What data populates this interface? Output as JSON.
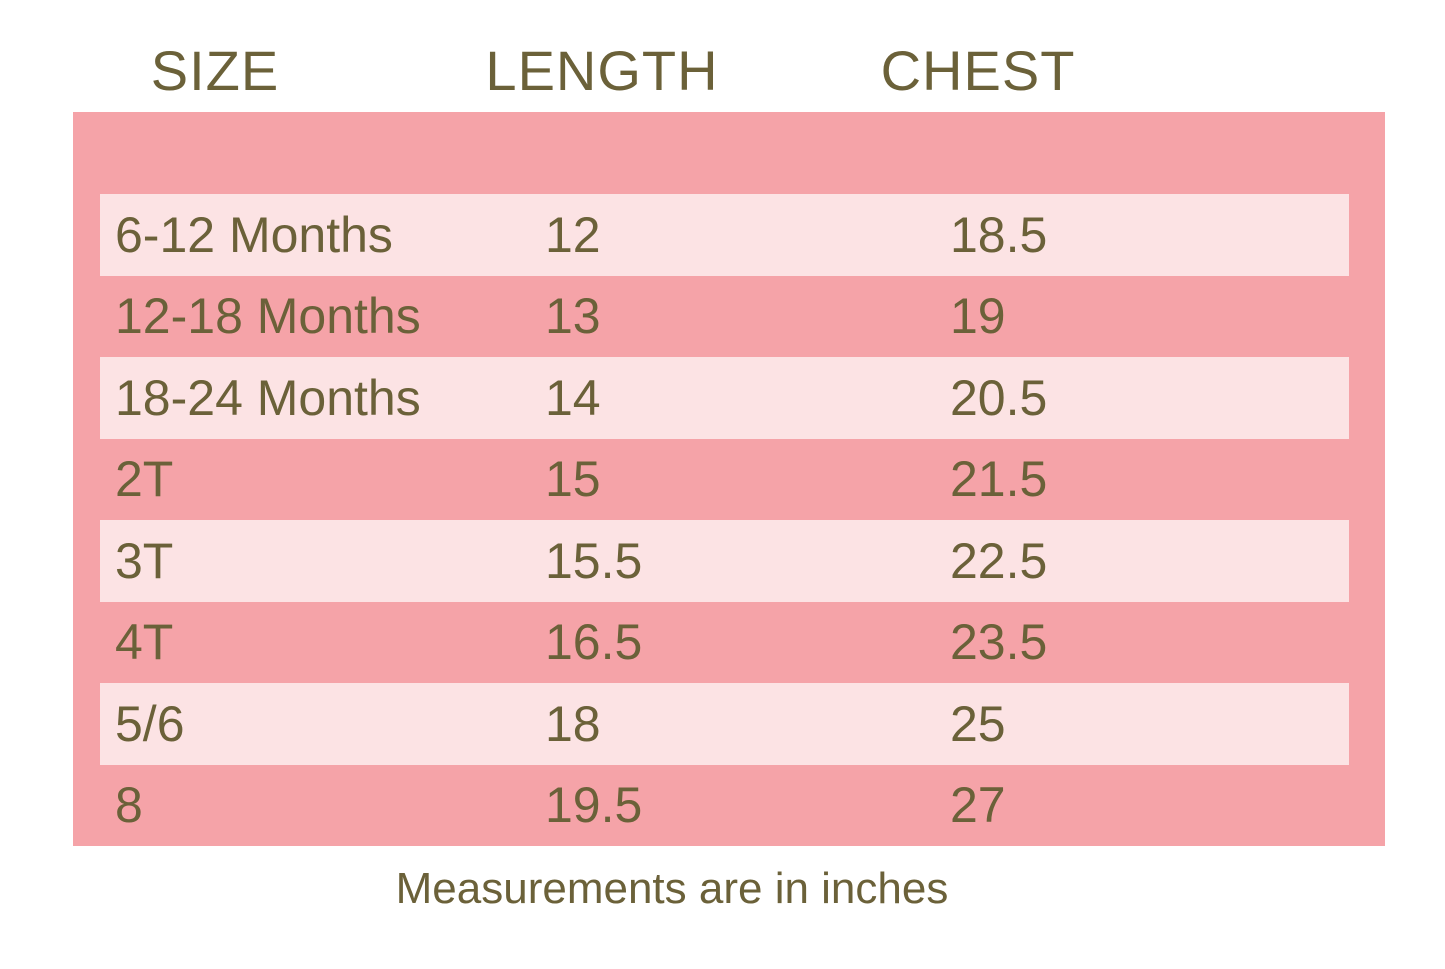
{
  "colors": {
    "background": "#ffffff",
    "panel_pink": "#f5a3a8",
    "stripe_pink": "#fce3e4",
    "text_olive": "#6b6139"
  },
  "header": {
    "columns": [
      "SIZE",
      "LENGTH",
      "CHEST"
    ]
  },
  "table": {
    "rows": [
      {
        "size": "6-12 Months",
        "length": "12",
        "chest": "18.5"
      },
      {
        "size": "12-18 Months",
        "length": "13",
        "chest": "19"
      },
      {
        "size": "18-24 Months",
        "length": "14",
        "chest": "20.5"
      },
      {
        "size": "2T",
        "length": "15",
        "chest": "21.5"
      },
      {
        "size": "3T",
        "length": "15.5",
        "chest": "22.5"
      },
      {
        "size": "4T",
        "length": "16.5",
        "chest": "23.5"
      },
      {
        "size": "5/6",
        "length": "18",
        "chest": "25"
      },
      {
        "size": "8",
        "length": "19.5",
        "chest": "27"
      }
    ]
  },
  "footer": {
    "note": "Measurements are in inches"
  },
  "chart_data": {
    "type": "table",
    "columns": [
      "SIZE",
      "LENGTH",
      "CHEST"
    ],
    "rows": [
      [
        "6-12 Months",
        12,
        18.5
      ],
      [
        "12-18 Months",
        13,
        19
      ],
      [
        "18-24 Months",
        14,
        20.5
      ],
      [
        "2T",
        15,
        21.5
      ],
      [
        "3T",
        15.5,
        22.5
      ],
      [
        "4T",
        16.5,
        23.5
      ],
      [
        "5/6",
        18,
        25
      ],
      [
        "8",
        19.5,
        27
      ]
    ],
    "units": "inches",
    "note": "Measurements are in inches",
    "layout": "alternating pink striped rows on salmon panel, headers above panel, note centered below"
  }
}
